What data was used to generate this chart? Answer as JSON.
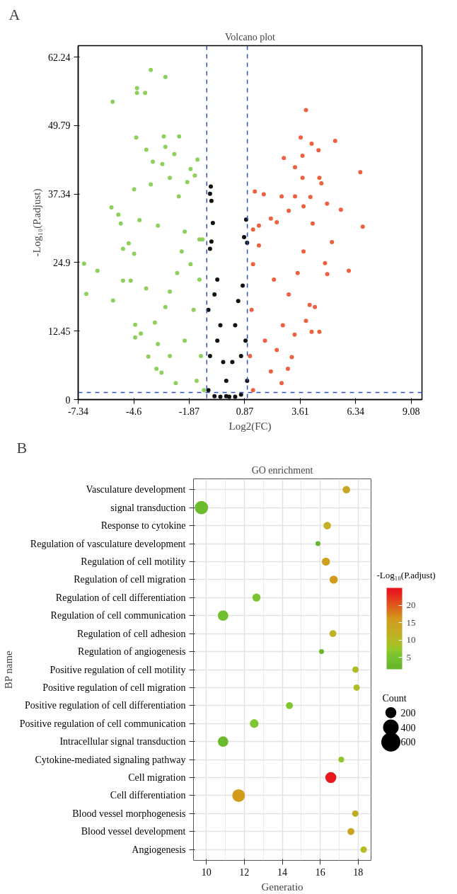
{
  "chart_data": [
    {
      "type": "scatter",
      "title": "Volcano plot",
      "xlabel": "Log2(FC)",
      "ylabel": "-Log₁₀(P.adjust)",
      "annotations": [
        "A"
      ],
      "xlim": [
        -7.34,
        9.61
      ],
      "xticks": [
        -7.34,
        -4.6,
        -1.87,
        0.87,
        3.61,
        6.34,
        9.08
      ],
      "ylim": [
        0,
        64.3
      ],
      "yticks": [
        0,
        12.45,
        24.9,
        37.34,
        49.79,
        62.24
      ],
      "marker": "circle",
      "ref_lines": [
        {
          "axis": "x",
          "value": -1,
          "color": "#2e4fbf",
          "line_style": "dashed"
        },
        {
          "axis": "x",
          "value": 1,
          "color": "#2e4fbf",
          "line_style": "dashed"
        },
        {
          "axis": "y",
          "value": 1.3,
          "color": "#2e4fbf",
          "line_style": "dashed"
        }
      ],
      "series": [
        {
          "color": "#8fcf5c",
          "x": [
            -3.76,
            -3.04,
            -4.44,
            -4.44,
            -4.04,
            -5.64,
            -4.48,
            -3.12,
            -2.36,
            -3.04,
            -3.98,
            -2.6,
            -3.66,
            -1.46,
            -3.19,
            -1.8,
            -1.59,
            -2.82,
            -4.58,
            -3.76,
            -1.96,
            -5.7,
            -2.38,
            -5.36,
            -4.32,
            -5.24,
            -3.41,
            -2.09,
            -1.36,
            -7.05,
            -6.39,
            -6.94,
            -5.62,
            -5.13,
            -4.85,
            -4.58,
            -4.75,
            -5.13,
            -4.53,
            -4.53,
            -4.25,
            -3.88,
            -3.48,
            -3.23,
            -2.53,
            -3.56,
            -3.04,
            -2.82,
            -2.46,
            -2.24,
            -2.09,
            -1.65,
            -1.36,
            -1.29,
            -1.5,
            -1.14,
            -1.21,
            -1.8,
            -2.82,
            -3.41,
            -3.99
          ],
          "values": [
            59.9,
            58.6,
            56.6,
            55.7,
            55.7,
            54.1,
            47.6,
            47.8,
            47.8,
            45.9,
            45.4,
            44.6,
            43.2,
            43.6,
            42.8,
            41.9,
            40.7,
            40.3,
            38.2,
            39.1,
            39.5,
            34.9,
            36.9,
            33.6,
            32.6,
            32.0,
            31.6,
            30.5,
            29.1,
            24.7,
            23.4,
            19.2,
            18.0,
            27.4,
            28.4,
            26.5,
            21.6,
            21.6,
            13.6,
            11.3,
            12.0,
            7.8,
            5.6,
            4.9,
            3.0,
            14.0,
            16.8,
            19.6,
            23.0,
            26.9,
            10.7,
            16.3,
            21.8,
            7.9,
            3.4,
            1.7,
            29.1,
            24.6,
            7.9,
            10.1,
            20.2
          ]
        },
        {
          "color": "#111111",
          "x": [
            -0.8,
            -0.84,
            -0.77,
            -0.7,
            -0.77,
            0.94,
            0.84,
            -0.84,
            -0.48,
            -0.33,
            -0.19,
            -0.04,
            0.11,
            -0.92,
            -0.84,
            -0.92,
            -0.62,
            0.99,
            0.77,
            0.4,
            0.26,
            0.55,
            0.91,
            0.99,
            0.69,
            -0.33,
            0.4,
            -0.62,
            -0.48,
            -0.04,
            0.69
          ],
          "values": [
            38.7,
            37.4,
            36.1,
            32.1,
            28.7,
            32.7,
            29.5,
            27.4,
            21.8,
            13.5,
            6.8,
            0.6,
            0.5,
            16.3,
            7.9,
            1.7,
            0.6,
            28.5,
            20.7,
            13.5,
            6.8,
            17.9,
            10.7,
            3.4,
            0.9,
            0.5,
            0.5,
            19.1,
            10.7,
            3.4,
            7.9
          ]
        },
        {
          "color": "#ef6040",
          "x": [
            3.89,
            3.63,
            5.33,
            4.17,
            4.51,
            2.8,
            3.72,
            3.35,
            6.57,
            3.72,
            4.55,
            4.65,
            1.37,
            1.81,
            2.69,
            3.35,
            4.11,
            4.93,
            5.61,
            6.69,
            3.04,
            3.77,
            2.16,
            4.22,
            1.57,
            2.45,
            1.28,
            6.0,
            4.83,
            4.94,
            5.17,
            4.33,
            4.07,
            4.55,
            4.17,
            3.89,
            3.19,
            3.0,
            2.69,
            1.28,
            1.13,
            1.21,
            1.28,
            1.57,
            2.31,
            2.75,
            3.04,
            2.16,
            1.87,
            3.48,
            3.77,
            3.33,
            2.45
          ],
          "values": [
            52.6,
            47.6,
            47.0,
            46.5,
            45.3,
            43.9,
            44.3,
            42.2,
            41.3,
            40.3,
            40.3,
            39.3,
            37.8,
            37.3,
            36.9,
            36.9,
            36.8,
            35.6,
            34.5,
            31.4,
            34.3,
            35.1,
            32.9,
            32.0,
            31.6,
            32.2,
            30.9,
            23.4,
            24.8,
            22.8,
            28.6,
            16.8,
            17.2,
            12.3,
            12.3,
            14.3,
            7.7,
            5.6,
            3.0,
            1.7,
            7.9,
            16.3,
            24.6,
            28.0,
            21.8,
            13.5,
            19.1,
            5.1,
            10.7,
            23.0,
            26.9,
            11.8,
            9.0
          ]
        }
      ]
    },
    {
      "type": "bubble",
      "title": "GO enrichment",
      "xlabel": "Generatio",
      "ylabel": "BP name",
      "annotations": [
        "B"
      ],
      "orientation": "horizontal",
      "grid": true,
      "categories": [
        "Vasculature development",
        "signal transduction",
        "Response to cytokine",
        "Regulation of vasculature development",
        "Regulation of cell motility",
        "Regulation of cell migration",
        "Regulation of cell differentiation",
        "Regulation of cell communication",
        "Regulation of cell adhesion",
        "Regulation of angiogenesis",
        "Positive regulation of cell motility",
        "Positive regulation of cell migration",
        "Positive regulation of cell differentiation",
        "Positive regulation of cell communication",
        "Intracellular signal transduction",
        "Cytokine-mediated signaling pathway",
        "Cell migration",
        "Cell differentiation",
        "Blood vessel morphogenesis",
        "Blood vessel development",
        "Angiogenesis"
      ],
      "values": [
        17.38,
        9.74,
        16.37,
        15.88,
        16.3,
        16.71,
        12.64,
        10.88,
        16.67,
        16.07,
        17.86,
        17.92,
        14.38,
        12.52,
        10.88,
        17.11,
        16.56,
        11.7,
        17.85,
        17.62,
        18.29
      ],
      "sizes": [
        94,
        293,
        94,
        40,
        109,
        109,
        109,
        179,
        80,
        40,
        67,
        67,
        80,
        125,
        179,
        55,
        200,
        268,
        67,
        80,
        67
      ],
      "cvalues": [
        14,
        3,
        12,
        3,
        15,
        16,
        6,
        4,
        11,
        3,
        9,
        9,
        6,
        6,
        3,
        7,
        24,
        16,
        12,
        14,
        10
      ],
      "colors": [
        "#c8a826",
        "#6cbb2e",
        "#c4b022",
        "#6bb52e",
        "#cfa01f",
        "#d49a1c",
        "#7cc530",
        "#72bf2e",
        "#bcb424",
        "#6bb52e",
        "#b0bc24",
        "#b0bc24",
        "#80c62f",
        "#7fc630",
        "#6cbb2e",
        "#8fc82c",
        "#e8191d",
        "#d39b1b",
        "#bcae24",
        "#c8a423",
        "#b4bc22"
      ],
      "size_legend": [
        200,
        400,
        600
      ],
      "legend_title": "Count",
      "clabel": "-Log₁₀(P.adjust)",
      "clim": [
        1.6,
        25
      ],
      "cticks": [
        5,
        10,
        15,
        20
      ],
      "xlim": [
        9.32,
        18.68
      ],
      "xticks": [
        10,
        12,
        14,
        16,
        18
      ]
    }
  ]
}
